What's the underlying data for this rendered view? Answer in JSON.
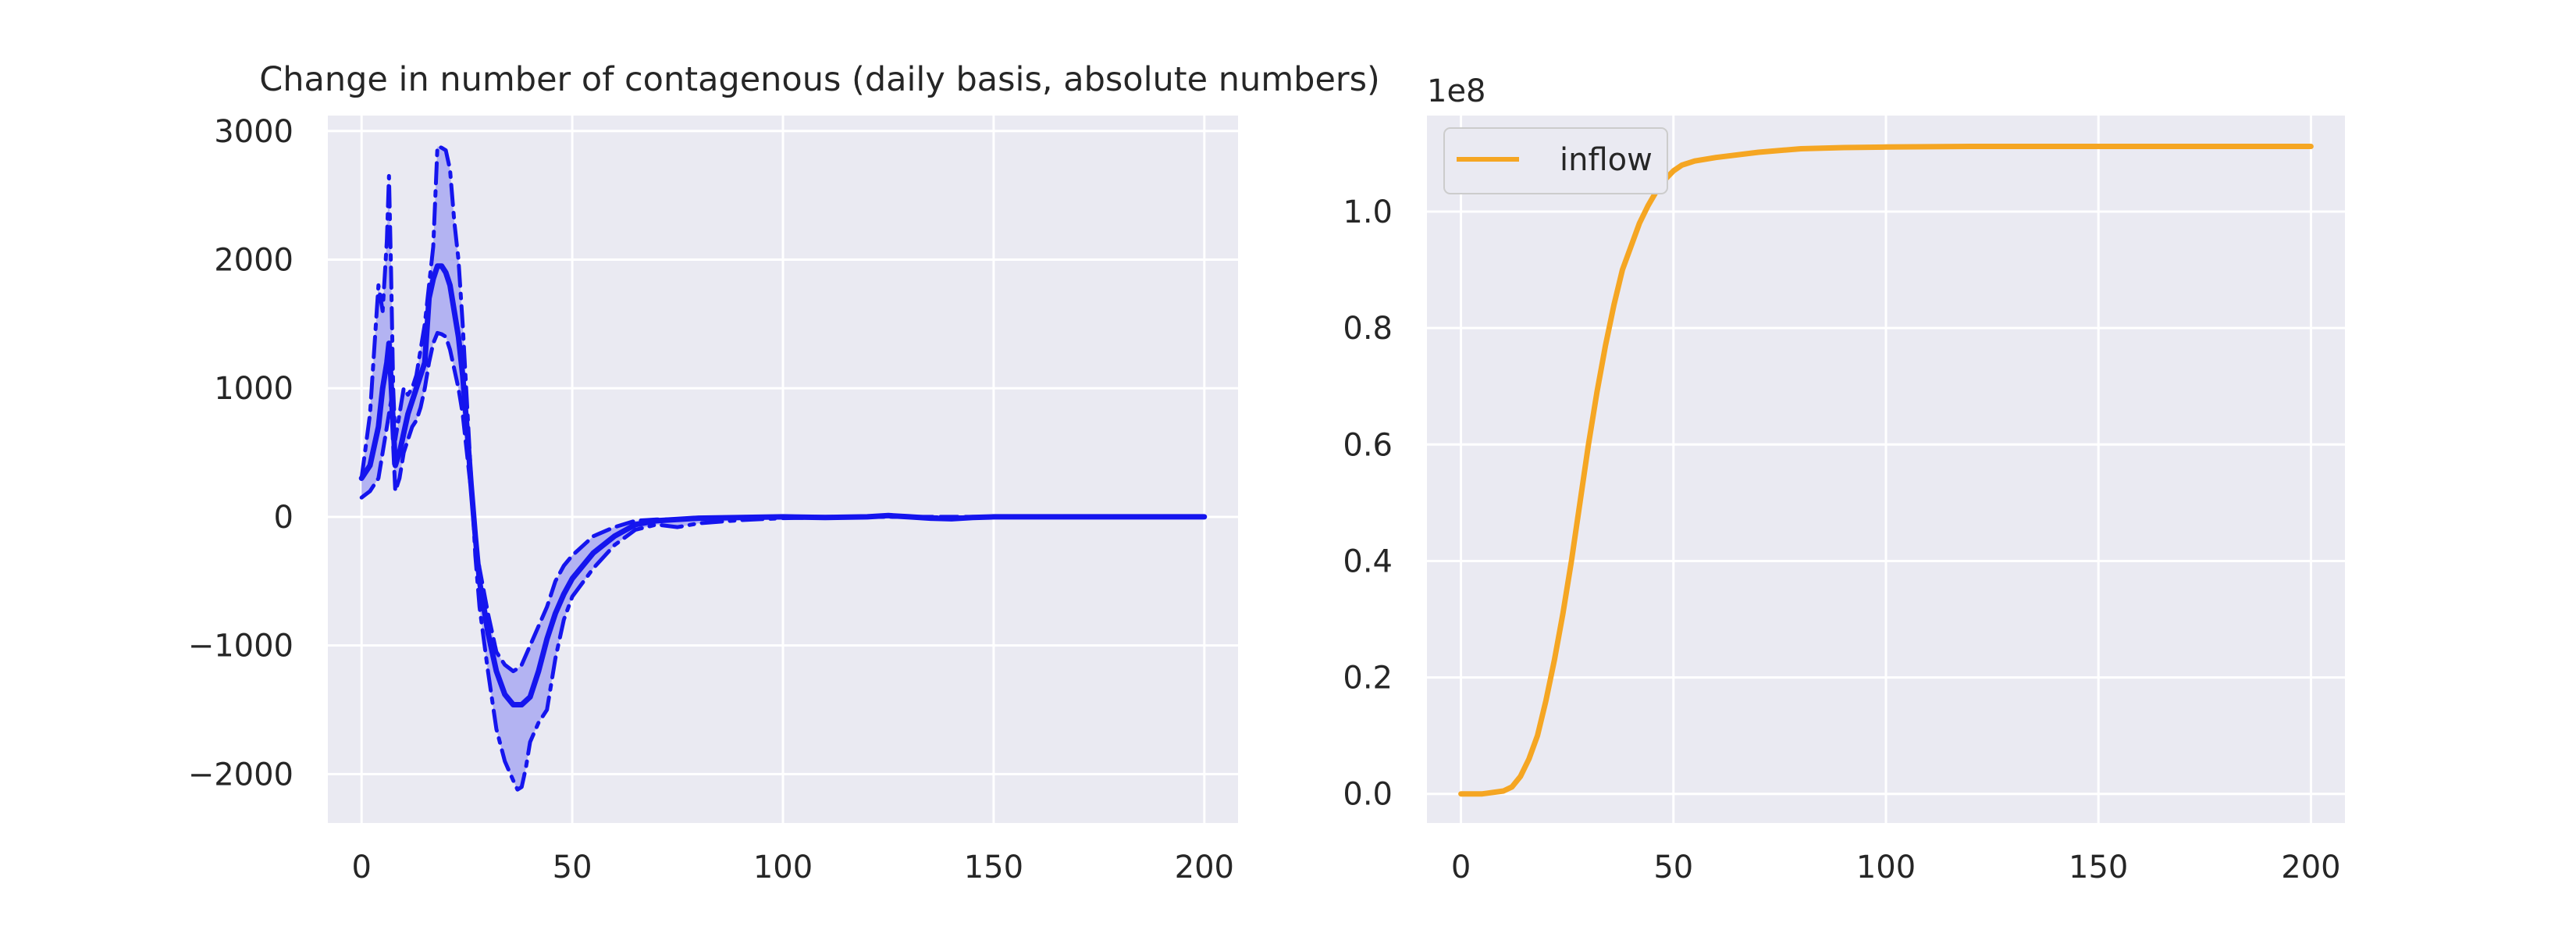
{
  "chart_data": [
    {
      "type": "line",
      "title": "Change in number of contagenous (daily basis, absolute numbers)",
      "xlabel": "",
      "ylabel": "",
      "xlim": [
        -8,
        208
      ],
      "ylim": [
        -2380,
        3120
      ],
      "xticks": [
        0,
        50,
        100,
        150,
        200
      ],
      "yticks": [
        -2000,
        -1000,
        0,
        1000,
        2000,
        3000
      ],
      "xtick_labels": [
        "0",
        "50",
        "100",
        "150",
        "200"
      ],
      "ytick_labels": [
        "−2000",
        "−1000",
        "0",
        "1000",
        "2000",
        "3000"
      ],
      "grid": true,
      "band_color": "#b3b3f2",
      "line_color": "#1515ee",
      "series": [
        {
          "style": "dashdot",
          "x": [
            0,
            2,
            4,
            5,
            6,
            6.5,
            7,
            7.5,
            8,
            9,
            10,
            11,
            12,
            13,
            14,
            15,
            16,
            17,
            18,
            19,
            20,
            21,
            22,
            23,
            24,
            25,
            26,
            27,
            28,
            30,
            32,
            34,
            36,
            37,
            38,
            39,
            40,
            42,
            44,
            46,
            48,
            50,
            55,
            60,
            65,
            70,
            75,
            80,
            90,
            100,
            110,
            120,
            130,
            140,
            150,
            160,
            170,
            180,
            190,
            200
          ],
          "y": [
            300,
            800,
            1800,
            1600,
            2150,
            2650,
            1900,
            1000,
            600,
            800,
            1000,
            950,
            1000,
            1100,
            1300,
            1500,
            1800,
            2100,
            2880,
            2870,
            2850,
            2700,
            2300,
            2000,
            1500,
            900,
            300,
            -300,
            -700,
            -1200,
            -1650,
            -1900,
            -2050,
            -2120,
            -2100,
            -1950,
            -1750,
            -1600,
            -1500,
            -1100,
            -800,
            -620,
            -400,
            -220,
            -100,
            -60,
            -80,
            -50,
            -25,
            -10,
            -5,
            0,
            0,
            -5,
            0,
            0,
            0,
            0,
            0,
            0
          ]
        },
        {
          "style": "solid",
          "x": [
            0,
            2,
            4,
            5,
            6,
            6.5,
            7,
            8,
            9,
            10,
            11,
            12,
            13,
            14,
            15,
            16,
            17,
            18,
            19,
            20,
            21,
            22,
            23,
            24,
            25,
            26,
            27,
            28,
            30,
            32,
            34,
            36,
            38,
            40,
            42,
            44,
            46,
            48,
            50,
            55,
            60,
            65,
            70,
            75,
            80,
            90,
            100,
            110,
            120,
            125,
            130,
            135,
            140,
            145,
            150,
            160,
            170,
            180,
            190,
            200
          ],
          "y": [
            300,
            400,
            700,
            1000,
            1200,
            1350,
            1050,
            400,
            500,
            650,
            800,
            900,
            1000,
            1100,
            1200,
            1700,
            1850,
            1950,
            1950,
            1900,
            1800,
            1600,
            1400,
            1100,
            700,
            250,
            -150,
            -500,
            -900,
            -1200,
            -1380,
            -1460,
            -1460,
            -1400,
            -1200,
            -950,
            -750,
            -600,
            -480,
            -280,
            -150,
            -60,
            -30,
            -20,
            -10,
            -5,
            0,
            -5,
            0,
            10,
            0,
            -10,
            -15,
            -5,
            0,
            0,
            0,
            0,
            0,
            0
          ]
        },
        {
          "style": "dashed",
          "x": [
            0,
            2,
            4,
            6,
            7,
            8,
            9,
            10,
            11,
            12,
            13,
            14,
            15,
            16,
            17,
            18,
            19,
            20,
            21,
            22,
            23,
            24,
            25,
            26,
            27,
            28,
            30,
            32,
            34,
            36,
            37,
            38,
            40,
            42,
            44,
            46,
            48,
            50,
            55,
            60,
            65,
            70,
            75,
            80,
            90,
            100,
            110,
            120,
            130,
            140,
            150,
            160,
            170,
            180,
            190,
            200
          ],
          "y": [
            150,
            200,
            300,
            700,
            900,
            200,
            300,
            500,
            600,
            700,
            750,
            850,
            1000,
            1200,
            1350,
            1430,
            1420,
            1400,
            1300,
            1150,
            1000,
            800,
            500,
            200,
            -200,
            -400,
            -750,
            -1050,
            -1150,
            -1200,
            -1180,
            -1150,
            -1000,
            -850,
            -700,
            -500,
            -380,
            -300,
            -150,
            -80,
            -30,
            -20,
            -20,
            -15,
            -5,
            0,
            0,
            0,
            0,
            0,
            0,
            0,
            0,
            0,
            0,
            0
          ]
        }
      ]
    },
    {
      "type": "line",
      "title": "",
      "offset_text": "1e8",
      "xlabel": "",
      "ylabel": "",
      "xlim": [
        -8,
        208
      ],
      "ylim": [
        -0.05,
        1.165
      ],
      "xticks": [
        0,
        50,
        100,
        150,
        200
      ],
      "yticks": [
        0.0,
        0.2,
        0.4,
        0.6,
        0.8,
        1.0
      ],
      "xtick_labels": [
        "0",
        "50",
        "100",
        "150",
        "200"
      ],
      "ytick_labels": [
        "0.0",
        "0.2",
        "0.4",
        "0.6",
        "0.8",
        "1.0"
      ],
      "grid": true,
      "legend_position": "top-left",
      "series": [
        {
          "name": "inflow",
          "color": "#f5a623",
          "x": [
            0,
            5,
            10,
            12,
            14,
            16,
            18,
            20,
            22,
            24,
            26,
            28,
            30,
            32,
            34,
            36,
            38,
            40,
            42,
            44,
            46,
            48,
            50,
            52,
            55,
            60,
            70,
            80,
            90,
            100,
            120,
            140,
            160,
            180,
            200
          ],
          "y": [
            0.0,
            0.0,
            0.005,
            0.012,
            0.03,
            0.06,
            0.1,
            0.16,
            0.23,
            0.31,
            0.4,
            0.5,
            0.6,
            0.69,
            0.77,
            0.84,
            0.9,
            0.94,
            0.98,
            1.01,
            1.035,
            1.055,
            1.07,
            1.08,
            1.087,
            1.093,
            1.102,
            1.108,
            1.11,
            1.111,
            1.112,
            1.112,
            1.112,
            1.112,
            1.112
          ]
        }
      ]
    }
  ]
}
